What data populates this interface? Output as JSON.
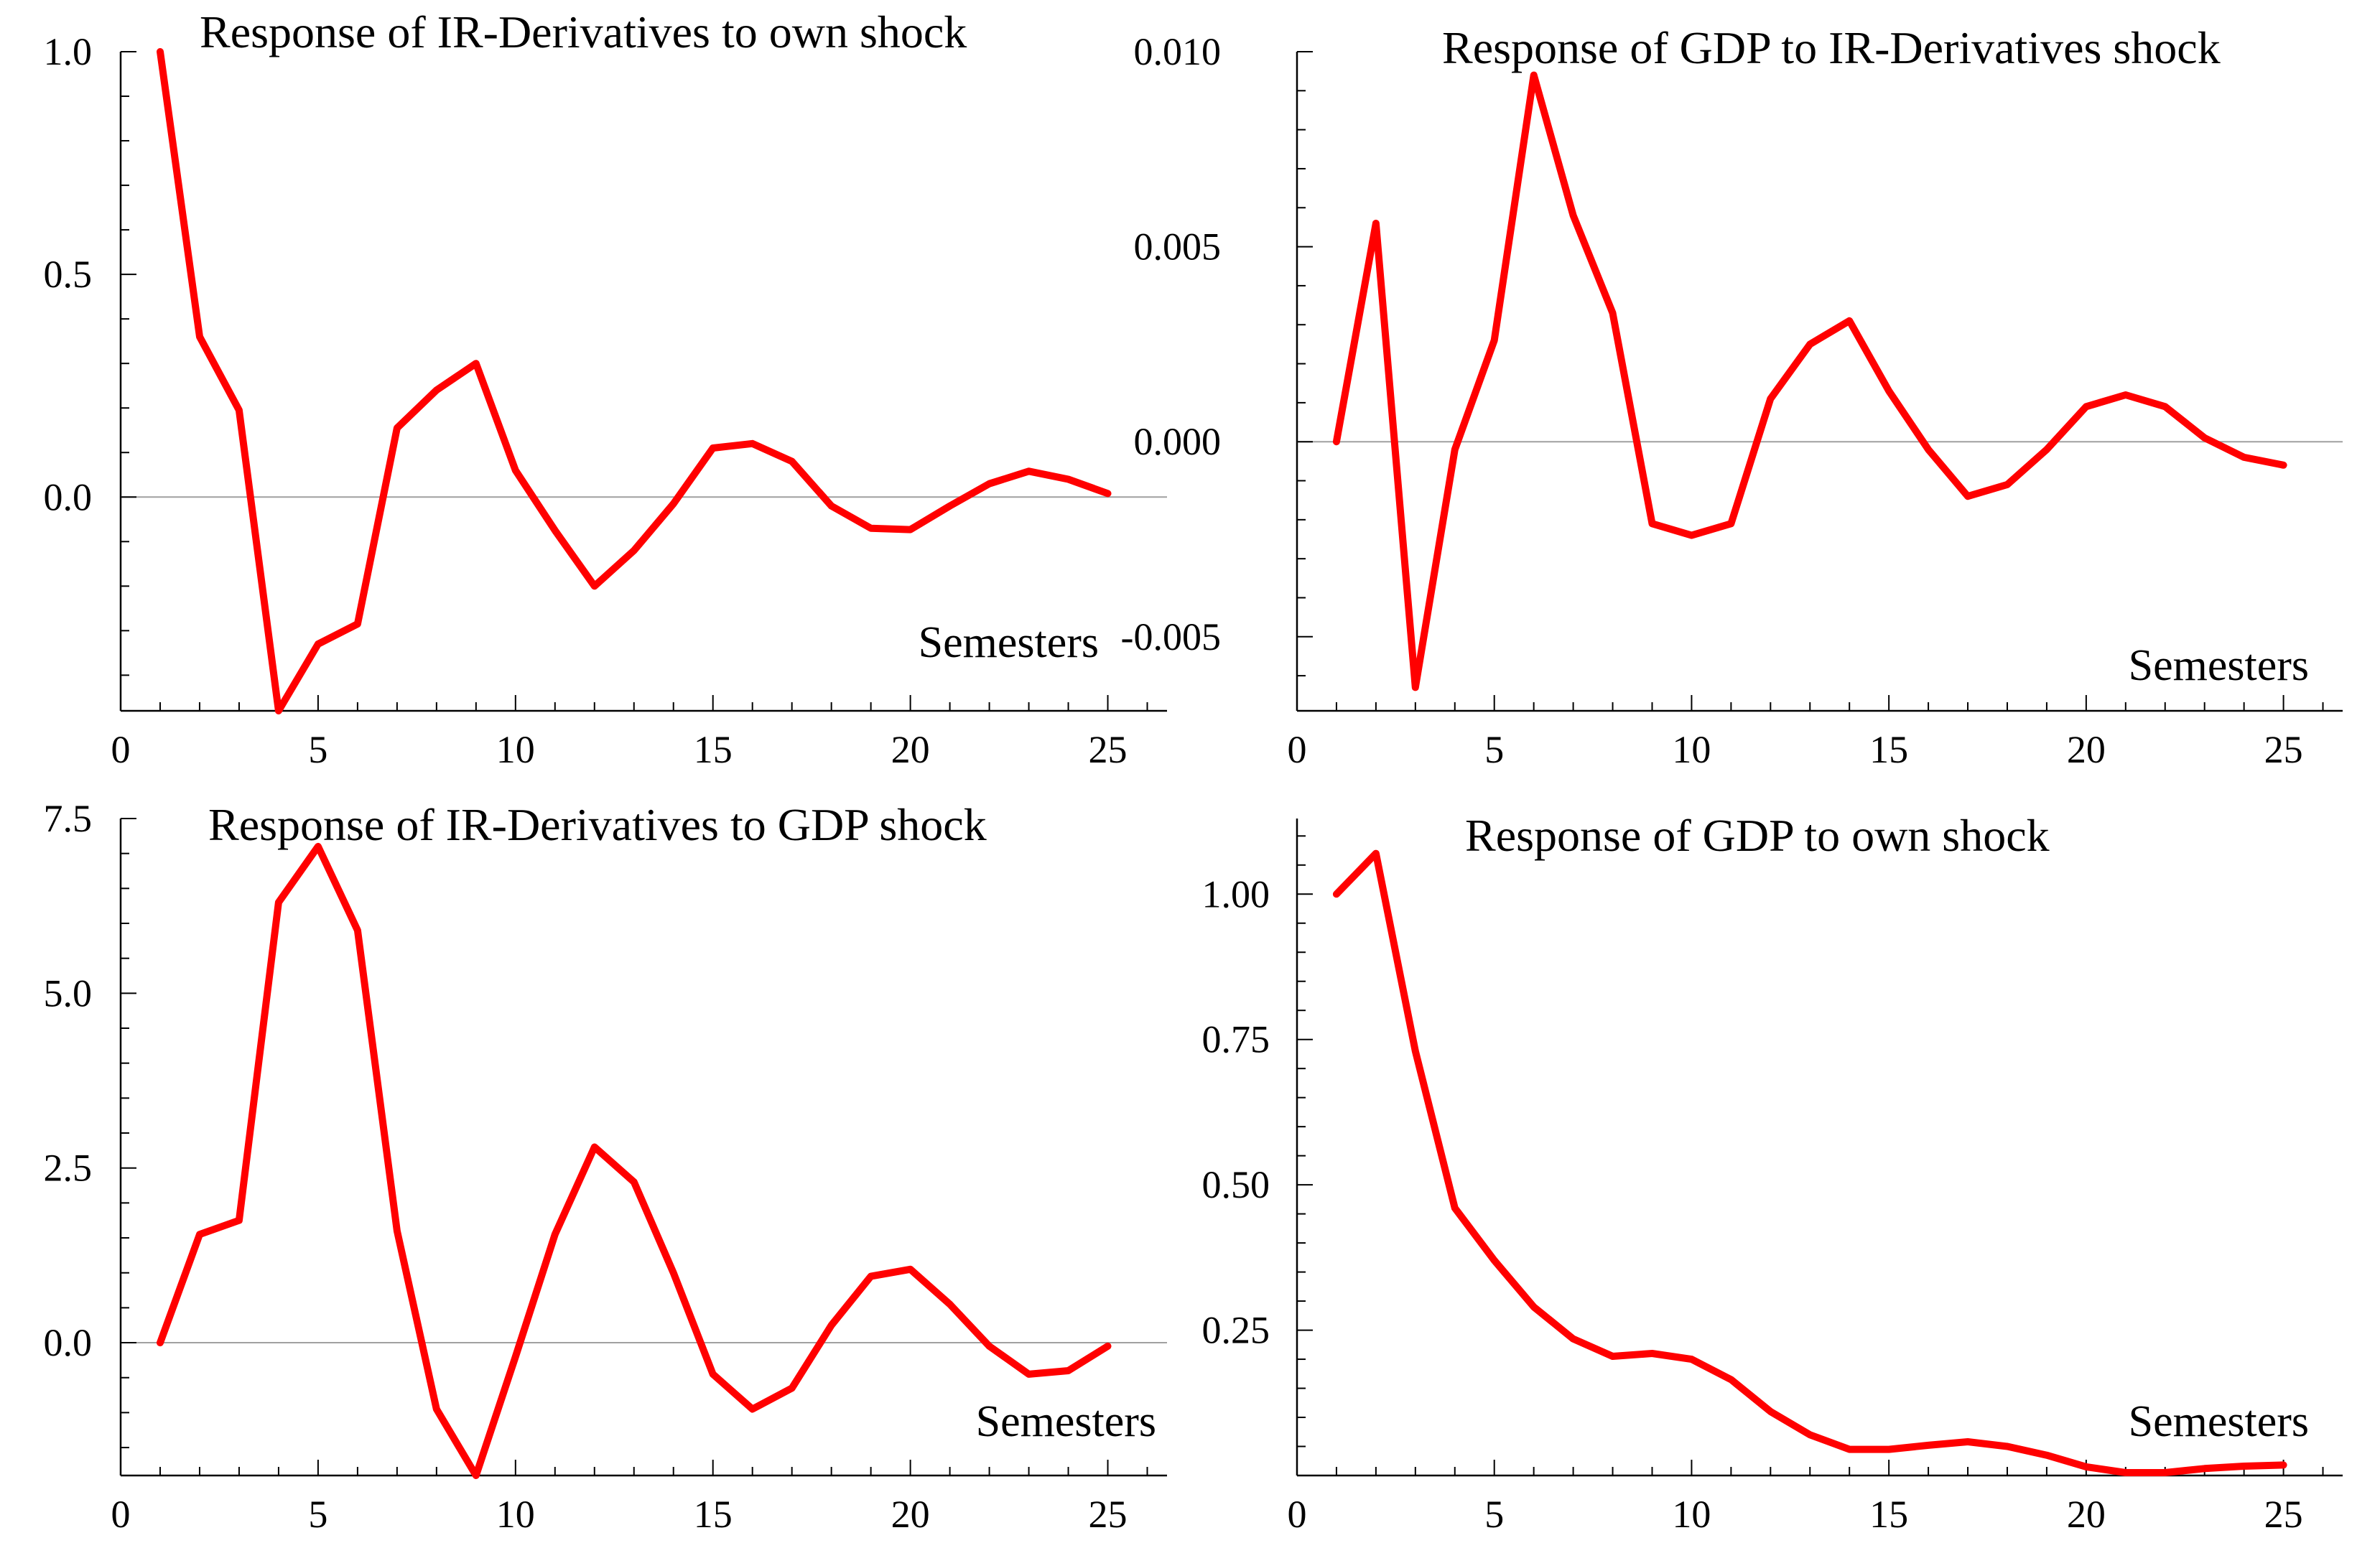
{
  "figure": {
    "series_color": "#ff0000",
    "axis_color": "#000000",
    "zero_line_color": "#a0a0a0"
  },
  "chart_data": [
    {
      "type": "line",
      "id": "ir-own",
      "title": "Response of IR-Derivatives to own shock",
      "xlabel": "Semesters",
      "ylabel": "",
      "xlim": [
        0,
        26.5
      ],
      "ylim": [
        -0.48,
        1.0
      ],
      "xticks": [
        0,
        5,
        10,
        15,
        20,
        25
      ],
      "yticks": [
        0.0,
        0.5,
        1.0
      ],
      "ytick_labels": [
        "0.0",
        "0.5",
        "1.0"
      ],
      "zero_line": true,
      "x": [
        1,
        2,
        3,
        4,
        5,
        6,
        7,
        8,
        9,
        10,
        11,
        12,
        13,
        14,
        15,
        16,
        17,
        18,
        19,
        20,
        21,
        22,
        23,
        24,
        25
      ],
      "series": [
        {
          "name": "Response of IR-Derivatives to own shock",
          "values": [
            1.0,
            0.36,
            0.195,
            -0.48,
            -0.33,
            -0.285,
            0.155,
            0.24,
            0.3,
            0.06,
            -0.075,
            -0.2,
            -0.12,
            -0.015,
            0.11,
            0.12,
            0.08,
            -0.02,
            -0.07,
            -0.073,
            -0.02,
            0.03,
            0.058,
            0.04,
            0.008
          ]
        }
      ]
    },
    {
      "type": "line",
      "id": "gdp-ir",
      "title": "Response of GDP to IR-Derivatives shock",
      "xlabel": "Semesters",
      "ylabel": "",
      "xlim": [
        0,
        26.5
      ],
      "ylim": [
        -0.0069,
        0.01
      ],
      "xticks": [
        0,
        5,
        10,
        15,
        20,
        25
      ],
      "yticks": [
        -0.005,
        0.0,
        0.005,
        0.01
      ],
      "ytick_labels": [
        "-0.005",
        "0.000",
        "0.005",
        "0.010"
      ],
      "zero_line": true,
      "x": [
        1,
        2,
        3,
        4,
        5,
        6,
        7,
        8,
        9,
        10,
        11,
        12,
        13,
        14,
        15,
        16,
        17,
        18,
        19,
        20,
        21,
        22,
        23,
        24,
        25
      ],
      "series": [
        {
          "name": "Response of GDP to IR-Derivatives shock",
          "values": [
            0.0,
            0.0056,
            -0.0063,
            -0.0002,
            0.0026,
            0.0094,
            0.0058,
            0.0033,
            -0.0021,
            -0.0024,
            -0.0021,
            0.0011,
            0.0025,
            0.0031,
            0.0013,
            -0.0002,
            -0.0014,
            -0.0011,
            -0.0002,
            0.0009,
            0.0012,
            0.0009,
            0.0001,
            -0.0004,
            -0.0006
          ]
        }
      ]
    },
    {
      "type": "line",
      "id": "ir-gdp",
      "title": "Response of IR-Derivatives to GDP shock",
      "xlabel": "Semesters",
      "ylabel": "",
      "xlim": [
        0,
        26.5
      ],
      "ylim": [
        -1.9,
        7.5
      ],
      "xticks": [
        0,
        5,
        10,
        15,
        20,
        25
      ],
      "yticks": [
        0.0,
        2.5,
        5.0,
        7.5
      ],
      "ytick_labels": [
        "0.0",
        "2.5",
        "5.0",
        "7.5"
      ],
      "zero_line": true,
      "x": [
        1,
        2,
        3,
        4,
        5,
        6,
        7,
        8,
        9,
        10,
        11,
        12,
        13,
        14,
        15,
        16,
        17,
        18,
        19,
        20,
        21,
        22,
        23,
        24,
        25
      ],
      "series": [
        {
          "name": "Response of IR-Derivatives to GDP shock",
          "values": [
            0.0,
            1.55,
            1.75,
            6.3,
            7.1,
            5.9,
            1.6,
            -0.95,
            -1.9,
            -0.2,
            1.55,
            2.8,
            2.3,
            1.0,
            -0.45,
            -0.95,
            -0.65,
            0.25,
            0.95,
            1.05,
            0.55,
            -0.05,
            -0.45,
            -0.4,
            -0.05
          ]
        }
      ]
    },
    {
      "type": "line",
      "id": "gdp-own",
      "title": "Response of GDP to own shock",
      "xlabel": "Semesters",
      "ylabel": "",
      "xlim": [
        0,
        26.5
      ],
      "ylim": [
        0.0,
        1.13
      ],
      "xticks": [
        0,
        5,
        10,
        15,
        20,
        25
      ],
      "yticks": [
        0.25,
        0.5,
        0.75,
        1.0
      ],
      "ytick_labels": [
        "0.25",
        "0.50",
        "0.75",
        "1.00"
      ],
      "zero_line": false,
      "x": [
        1,
        2,
        3,
        4,
        5,
        6,
        7,
        8,
        9,
        10,
        11,
        12,
        13,
        14,
        15,
        16,
        17,
        18,
        19,
        20,
        21,
        22,
        23,
        24,
        25
      ],
      "series": [
        {
          "name": "Response of GDP to own shock",
          "values": [
            1.0,
            1.07,
            0.73,
            0.46,
            0.37,
            0.29,
            0.235,
            0.205,
            0.21,
            0.2,
            0.165,
            0.11,
            0.07,
            0.045,
            0.045,
            0.052,
            0.058,
            0.05,
            0.035,
            0.015,
            0.005,
            0.005,
            0.012,
            0.016,
            0.018
          ]
        }
      ]
    }
  ]
}
